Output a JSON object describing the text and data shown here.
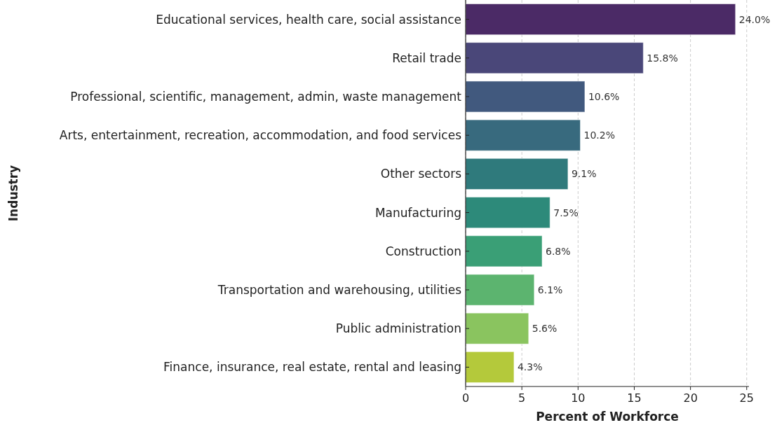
{
  "chart_data": {
    "type": "bar",
    "orientation": "horizontal",
    "xlabel": "Percent of Workforce",
    "ylabel": "Industry",
    "categories": [
      "Educational services, health care, social assistance",
      "Retail trade",
      "Professional, scientific, management, admin, waste management",
      "Arts, entertainment, recreation, accommodation, and food services",
      "Other sectors",
      "Manufacturing",
      "Construction",
      "Transportation and warehousing, utilities",
      "Public administration",
      "Finance, insurance, real estate, rental and leasing"
    ],
    "values": [
      24.0,
      15.8,
      10.6,
      10.2,
      9.1,
      7.5,
      6.8,
      6.1,
      5.6,
      4.3
    ],
    "value_labels": [
      "24.0%",
      "15.8%",
      "10.6%",
      "10.2%",
      "9.1%",
      "7.5%",
      "6.8%",
      "6.1%",
      "5.6%",
      "4.3%"
    ],
    "colors": [
      "#4b2a66",
      "#4a4779",
      "#41597e",
      "#386a7e",
      "#2f7a7c",
      "#2d8a7a",
      "#3a9f76",
      "#5cb46f",
      "#8ac45f",
      "#b4c93b"
    ],
    "xlim": [
      0,
      25.2
    ],
    "xticks": [
      0,
      5,
      10,
      15,
      20,
      25
    ],
    "grid": "x"
  }
}
